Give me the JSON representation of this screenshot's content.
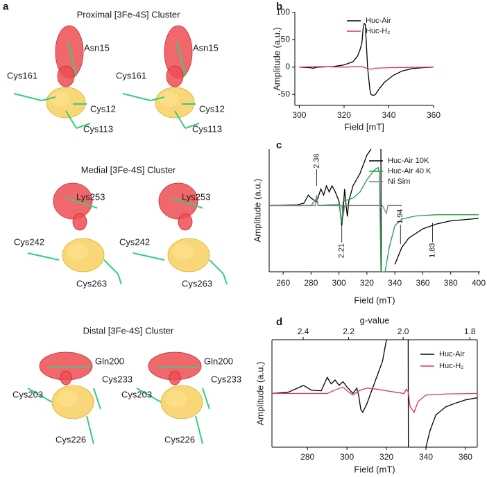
{
  "panel_labels": [
    "a",
    "b",
    "c",
    "d"
  ],
  "structures": [
    {
      "title": "Proximal [3Fe-4S] Cluster",
      "labels": [
        "Asn15",
        "Cys161",
        "Cys12",
        "Cys113"
      ]
    },
    {
      "title": "Medial [3Fe-4S] Cluster",
      "labels": [
        "Lys253",
        "Cys242",
        "Cys263"
      ]
    },
    {
      "title": "Distal [3Fe-4S] Cluster",
      "labels": [
        "Gln200",
        "Cys233",
        "Cys203",
        "Cys226"
      ]
    }
  ],
  "chart_data": [
    {
      "type": "line",
      "x_label": "Field [mT]",
      "y_label": "Amplitude (a.u.)",
      "xlim": [
        298,
        360
      ],
      "xticks": [
        300,
        320,
        340,
        360
      ],
      "ylim": [
        -70,
        100
      ],
      "yticks": [
        -50,
        0,
        50,
        100
      ],
      "series": [
        {
          "name": "Huc-Air",
          "color": "#000000",
          "x": [
            300,
            305,
            306,
            308,
            315,
            320,
            324,
            326,
            327,
            328,
            328.5,
            329,
            329.5,
            330,
            330.5,
            331,
            331.5,
            332,
            333,
            334,
            336,
            338,
            342,
            346,
            350,
            355,
            360
          ],
          "values": [
            0,
            -1,
            -2,
            0,
            1,
            4,
            10,
            20,
            30,
            45,
            70,
            80,
            78,
            40,
            0,
            -20,
            -40,
            -50,
            -52,
            -50,
            -38,
            -28,
            -15,
            -7,
            -3,
            -1,
            0
          ]
        },
        {
          "name": "Huc-H₂",
          "color": "#d6336c",
          "x": [
            300,
            310,
            320,
            328,
            330,
            332,
            334,
            340,
            360
          ],
          "values": [
            0,
            1,
            0,
            1,
            -2,
            -4,
            -2,
            -1,
            0
          ]
        }
      ]
    },
    {
      "type": "line",
      "x_label": "Field (mT)",
      "y_label": "Amplitude (a.u.)",
      "xlim": [
        250,
        401
      ],
      "xticks": [
        260,
        280,
        300,
        320,
        340,
        360,
        380,
        400
      ],
      "ylim": [
        -100,
        100
      ],
      "annotations": [
        "2.36",
        "2.21",
        "1.94",
        "1.83"
      ],
      "series": [
        {
          "name": "Huc-Air 10K",
          "color": "#000000",
          "x": [
            250,
            270,
            275,
            278,
            280,
            284,
            287,
            289,
            291,
            293,
            295,
            297,
            300,
            302,
            303,
            304,
            305,
            306,
            307,
            310,
            315,
            320,
            323,
            329,
            330,
            330.2,
            338,
            340,
            345,
            350,
            360,
            370,
            380,
            390,
            400
          ],
          "values": [
            8,
            9,
            12,
            25,
            20,
            14,
            35,
            25,
            40,
            30,
            40,
            32,
            15,
            -25,
            0,
            35,
            10,
            -10,
            15,
            40,
            60,
            90,
            100,
            null,
            100,
            -100,
            null,
            -88,
            -60,
            -45,
            -30,
            -22,
            -17,
            -15,
            -13
          ]
        },
        {
          "name": "Huc-Air 40 K",
          "color": "#1e9e4a",
          "x": [
            250,
            280,
            284,
            285,
            300,
            302,
            303,
            310,
            315,
            320,
            325,
            328,
            329,
            330,
            333,
            336,
            340,
            345,
            355,
            370,
            400
          ],
          "values": [
            8,
            8,
            20,
            8,
            10,
            -20,
            15,
            20,
            30,
            50,
            65,
            70,
            60,
            -100,
            -100,
            -60,
            -25,
            -14,
            -9,
            -7,
            -7
          ]
        },
        {
          "name": "Ni Sim",
          "color": "#808080",
          "x": [
            250,
            283,
            284,
            285,
            302,
            303,
            304,
            329,
            330,
            331,
            334,
            335,
            345
          ],
          "values": [
            8,
            8,
            25,
            8,
            8,
            -10,
            8,
            8,
            5,
            8,
            -5,
            8,
            8
          ]
        }
      ]
    },
    {
      "type": "line",
      "x_label": "Field (mT)",
      "y_label": "Amplitude (a.u.)",
      "x2_label": "g-value",
      "xlim": [
        262,
        366
      ],
      "xticks": [
        280,
        300,
        320,
        340,
        360
      ],
      "ylim": [
        -100,
        100
      ],
      "x2lim": [
        2.56,
        1.78
      ],
      "x2scale": "inverse",
      "x2ticks": [
        2.4,
        2.2,
        {
          "value": 2.0,
          "label": "2.0"
        },
        1.8
      ],
      "series": [
        {
          "name": "Huc-Air",
          "color": "#000000",
          "x": [
            262,
            270,
            275,
            278,
            282,
            287,
            290,
            292,
            294,
            296,
            298,
            300,
            303,
            305,
            306,
            307,
            308,
            310,
            314,
            318,
            320,
            330,
            331,
            331.1,
            339,
            340,
            342,
            345,
            350,
            355,
            360,
            366
          ],
          "values": [
            0,
            2,
            10,
            15,
            6,
            5,
            30,
            18,
            25,
            15,
            22,
            12,
            0,
            10,
            -5,
            -30,
            -35,
            -20,
            20,
            60,
            100,
            null,
            100,
            -100,
            null,
            -100,
            -70,
            -40,
            -25,
            -18,
            -12,
            -8
          ]
        },
        {
          "name": "Huc-H₂",
          "color": "#d6336c",
          "x": [
            262,
            290,
            295,
            298,
            300,
            303,
            306,
            310,
            315,
            320,
            325,
            329,
            330,
            331,
            332,
            334,
            336,
            340,
            350,
            366
          ],
          "values": [
            0,
            0,
            8,
            12,
            5,
            -3,
            5,
            10,
            8,
            5,
            2,
            0,
            8,
            3,
            -25,
            -35,
            -15,
            -3,
            -1,
            0
          ]
        }
      ]
    }
  ]
}
